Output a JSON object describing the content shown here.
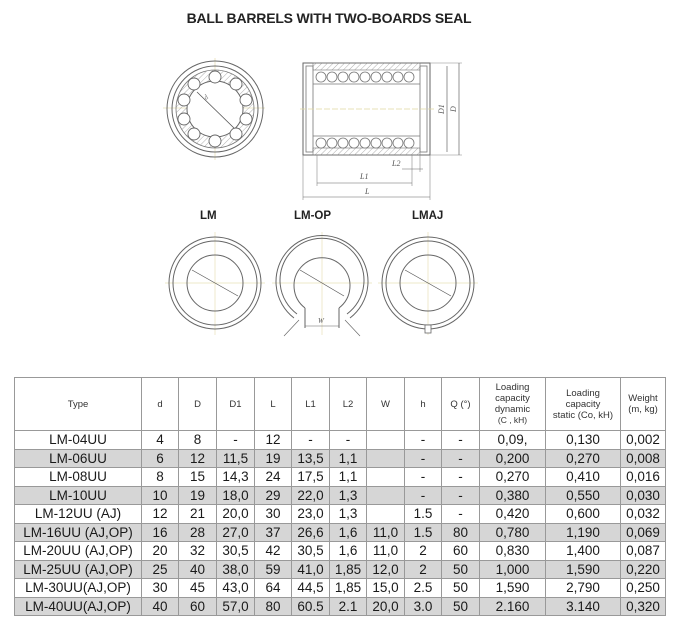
{
  "title": "BALL BARRELS WITH TWO-BOARDS SEAL",
  "drawings": {
    "section_labels": {
      "d": "d",
      "d1": "D1",
      "D": "D",
      "L": "L",
      "L1": "L1",
      "L2": "L2",
      "W": "W"
    },
    "variants": [
      {
        "label": "LM"
      },
      {
        "label": "LM-OP"
      },
      {
        "label": "LMAJ"
      }
    ]
  },
  "table": {
    "headers": {
      "type": "Type",
      "d": "d",
      "D": "D",
      "D1": "D1",
      "L": "L",
      "L1": "L1",
      "L2": "L2",
      "W": "W",
      "h": "h",
      "Q": "Q (°)",
      "dynamic_line1": "Loading",
      "dynamic_line2": "capacity",
      "dynamic_line3": "dynamic",
      "dynamic_line4": "(C , kH)",
      "static_line1": "Loading",
      "static_line2": "capacity",
      "static_line3": "static (Co, kH)",
      "weight_line1": "Weight",
      "weight_line2": "(m, kg)"
    },
    "rows": [
      {
        "type": "LM-04UU",
        "d": "4",
        "D": "8",
        "D1": "-",
        "L": "12",
        "L1": "-",
        "L2": "-",
        "W": "",
        "h": "-",
        "Q": "-",
        "dynamic": "0,09,",
        "static": "0,130",
        "weight": "0,002"
      },
      {
        "type": "LM-06UU",
        "d": "6",
        "D": "12",
        "D1": "11,5",
        "L": "19",
        "L1": "13,5",
        "L2": "1,1",
        "W": "",
        "h": "-",
        "Q": "-",
        "dynamic": "0,200",
        "static": "0,270",
        "weight": "0,008"
      },
      {
        "type": "LM-08UU",
        "d": "8",
        "D": "15",
        "D1": "14,3",
        "L": "24",
        "L1": "17,5",
        "L2": "1,1",
        "W": "",
        "h": "-",
        "Q": "-",
        "dynamic": "0,270",
        "static": "0,410",
        "weight": "0,016"
      },
      {
        "type": "LM-10UU",
        "d": "10",
        "D": "19",
        "D1": "18,0",
        "L": "29",
        "L1": "22,0",
        "L2": "1,3",
        "W": "",
        "h": "-",
        "Q": "-",
        "dynamic": "0,380",
        "static": "0,550",
        "weight": "0,030"
      },
      {
        "type": "LM-12UU (AJ)",
        "d": "12",
        "D": "21",
        "D1": "20,0",
        "L": "30",
        "L1": "23,0",
        "L2": "1,3",
        "W": "",
        "h": "1.5",
        "Q": "-",
        "dynamic": "0,420",
        "static": "0,600",
        "weight": "0,032"
      },
      {
        "type": "LM-16UU (AJ,OP)",
        "d": "16",
        "D": "28",
        "D1": "27,0",
        "L": "37",
        "L1": "26,6",
        "L2": "1,6",
        "W": "11,0",
        "h": "1.5",
        "Q": "80",
        "dynamic": "0,780",
        "static": "1,190",
        "weight": "0,069"
      },
      {
        "type": "LM-20UU (AJ,OP)",
        "d": "20",
        "D": "32",
        "D1": "30,5",
        "L": "42",
        "L1": "30,5",
        "L2": "1,6",
        "W": "11,0",
        "h": "2",
        "Q": "60",
        "dynamic": "0,830",
        "static": "1,400",
        "weight": "0,087"
      },
      {
        "type": "LM-25UU (AJ,OP)",
        "d": "25",
        "D": "40",
        "D1": "38,0",
        "L": "59",
        "L1": "41,0",
        "L2": "1,85",
        "W": "12,0",
        "h": "2",
        "Q": "50",
        "dynamic": "1,000",
        "static": "1,590",
        "weight": "0,220"
      },
      {
        "type": "LM-30UU(AJ,OP)",
        "d": "30",
        "D": "45",
        "D1": "43,0",
        "L": "64",
        "L1": "44,5",
        "L2": "1,85",
        "W": "15,0",
        "h": "2.5",
        "Q": "50",
        "dynamic": "1,590",
        "static": "2,790",
        "weight": "0,250"
      },
      {
        "type": "LM-40UU(AJ,OP)",
        "d": "40",
        "D": "60",
        "D1": "57,0",
        "L": "80",
        "L1": "60.5",
        "L2": "2.1",
        "W": "20,0",
        "h": "3.0",
        "Q": "50",
        "dynamic": "2.160",
        "static": "3.140",
        "weight": "0,320"
      }
    ]
  }
}
